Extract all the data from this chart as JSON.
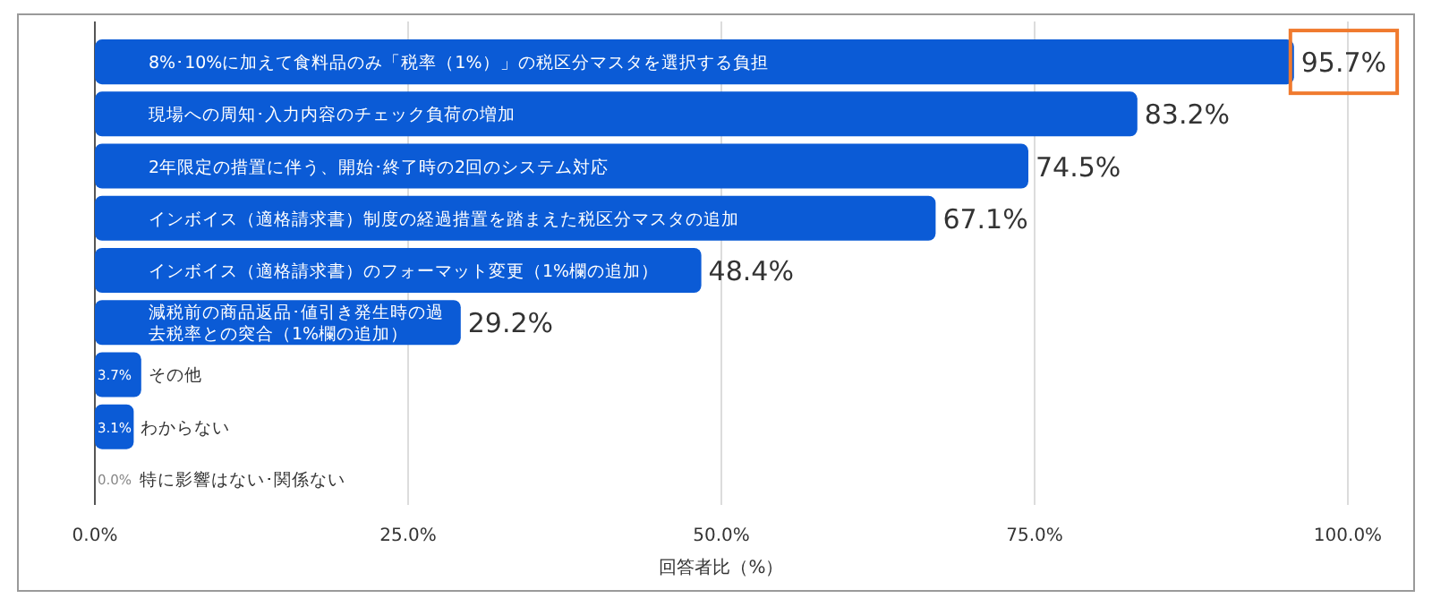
{
  "chart_data": {
    "type": "bar",
    "orientation": "horizontal",
    "categories": [
      "8%･10%に加えて食料品のみ「税率（1%）」の税区分マスタを選択する負担",
      "現場への周知･入力内容のチェック負荷の増加",
      "2年限定の措置に伴う、開始･終了時の2回のシステム対応",
      "インボイス（適格請求書）制度の経過措置を踏まえた税区分マスタの追加",
      "インボイス（適格請求書）のフォーマット変更（1%欄の追加）",
      "減税前の商品返品･値引き発生時の過去税率との突合（1%欄の追加）",
      "その他",
      "わからない",
      "特に影響はない･関係ない"
    ],
    "values": [
      95.7,
      83.2,
      74.5,
      67.1,
      48.4,
      29.2,
      3.7,
      3.1,
      0.0
    ],
    "value_labels": [
      "95.7%",
      "83.2%",
      "74.5%",
      "67.1%",
      "48.4%",
      "29.2%",
      "3.7%",
      "3.1%",
      "0.0%"
    ],
    "color": "#0b5bd6",
    "xlim": [
      0,
      100
    ],
    "xticks": [
      {
        "value": 0,
        "label": "0.0%"
      },
      {
        "value": 25,
        "label": "25.0%"
      },
      {
        "value": 50,
        "label": "50.0%"
      },
      {
        "value": 75,
        "label": "75.0%"
      },
      {
        "value": 100,
        "label": "100.0%"
      }
    ],
    "xlabel": "回答者比（%）",
    "grid": "x"
  }
}
